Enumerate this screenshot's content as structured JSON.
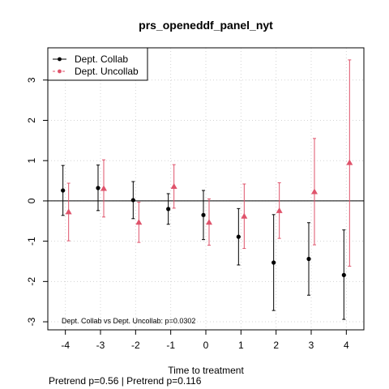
{
  "chart_data": {
    "type": "scatter",
    "title": "prs_openeddf_panel_nyt",
    "xlabel": "Time to treatment",
    "ylabel": "",
    "x": [
      -4,
      -3,
      -2,
      -1,
      0,
      1,
      2,
      3,
      4
    ],
    "x_tick_labels": [
      "-4",
      "-3",
      "-2",
      "-1",
      "0",
      "1",
      "2",
      "3",
      "4"
    ],
    "y_ticks": [
      -3,
      -2,
      -1,
      0,
      1,
      2,
      3
    ],
    "y_tick_labels": [
      "-3",
      "-2",
      "-1",
      "0",
      "1",
      "2",
      "3"
    ],
    "xlim": [
      -4.5,
      4.5
    ],
    "ylim": [
      -3.2,
      3.8
    ],
    "grid": true,
    "zero_line": true,
    "legend_position": "top-left",
    "series": [
      {
        "name": "Dept. Collab",
        "color": "#000000",
        "marker": "circle",
        "estimates": [
          0.26,
          0.32,
          0.02,
          -0.2,
          -0.35,
          -0.89,
          -1.53,
          -1.44,
          -1.84
        ],
        "ci_low": [
          -0.36,
          -0.24,
          -0.44,
          -0.58,
          -0.96,
          -1.59,
          -2.72,
          -2.34,
          -2.94
        ],
        "ci_high": [
          0.88,
          0.89,
          0.48,
          0.18,
          0.26,
          -0.19,
          -0.34,
          -0.54,
          -0.72
        ]
      },
      {
        "name": "Dept. Uncollab",
        "color": "#DF536B",
        "marker": "triangle",
        "estimates": [
          -0.27,
          0.31,
          -0.53,
          0.36,
          -0.53,
          -0.38,
          -0.24,
          0.23,
          0.95
        ],
        "ci_low": [
          -0.99,
          -0.4,
          -1.03,
          -0.18,
          -1.1,
          -1.18,
          -0.93,
          -1.09,
          -1.62
        ],
        "ci_high": [
          0.44,
          1.02,
          -0.03,
          0.9,
          0.05,
          0.42,
          0.45,
          1.55,
          3.5
        ]
      }
    ],
    "annotation": "Dept. Collab vs Dept. Uncollab: p=0.0302",
    "footer": "Pretrend p=0.56 | Pretrend p=0.116"
  }
}
